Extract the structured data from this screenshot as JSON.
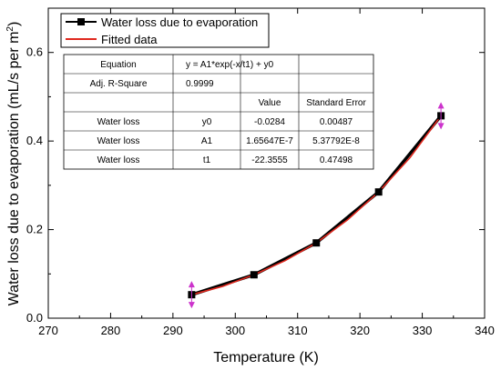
{
  "chart_data": {
    "type": "line",
    "xlabel": "Temperature (K)",
    "ylabel": "Water loss due to evaporation (mL/s per m",
    "ylabel_sup": "2",
    "ylabel_end": ")",
    "xlim": [
      270,
      340
    ],
    "ylim": [
      0.0,
      0.7
    ],
    "xticks": [
      270,
      280,
      290,
      300,
      310,
      320,
      330,
      340
    ],
    "yticks": [
      0.0,
      0.2,
      0.4,
      0.6
    ],
    "xtick_labels": [
      "270",
      "280",
      "290",
      "300",
      "310",
      "320",
      "330",
      "340"
    ],
    "ytick_labels": [
      "0.0",
      "0.2",
      "0.4",
      "0.6"
    ],
    "series": [
      {
        "name": "Water loss due to evaporation",
        "color": "#000000",
        "marker": "square",
        "x": [
          293,
          303,
          313,
          323,
          333
        ],
        "y": [
          0.053,
          0.098,
          0.17,
          0.285,
          0.457
        ]
      },
      {
        "name": "Fitted data",
        "color": "#e0281e",
        "x": [
          293,
          298,
          303,
          308,
          313,
          318,
          323,
          328,
          333
        ],
        "y": [
          0.053,
          0.072,
          0.098,
          0.13,
          0.17,
          0.222,
          0.285,
          0.362,
          0.457
        ]
      }
    ],
    "error_markers": {
      "color": "#cc33cc",
      "x": [
        293,
        333
      ],
      "y": [
        0.053,
        0.457
      ]
    },
    "legend": {
      "placement": "top-left"
    },
    "fit_table": {
      "rows": [
        [
          "Equation",
          "y = A1*exp(-x/t1) + y0",
          "",
          ""
        ],
        [
          "Adj. R-Square",
          "0.9999",
          "",
          ""
        ],
        [
          "",
          "",
          "Value",
          "Standard Error"
        ],
        [
          "Water loss",
          "y0",
          "-0.0284",
          "0.00487"
        ],
        [
          "Water loss",
          "A1",
          "1.65647E-7",
          "5.37792E-8"
        ],
        [
          "Water loss",
          "t1",
          "-22.3555",
          "0.47498"
        ]
      ]
    }
  }
}
